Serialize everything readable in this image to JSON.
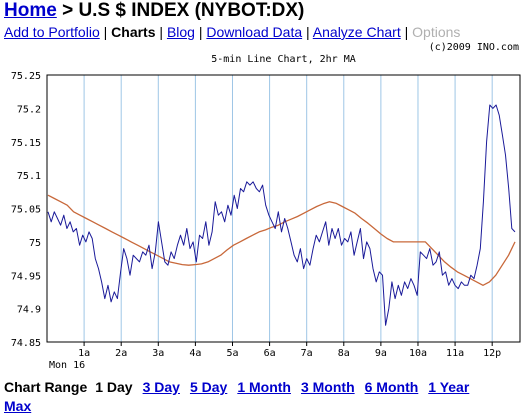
{
  "header": {
    "home": "Home",
    "separator": " > ",
    "title": "U.S $ INDEX (NYBOT:DX)"
  },
  "nav": {
    "add_to_portfolio": "Add to Portfolio",
    "charts": "Charts",
    "blog": "Blog",
    "download_data": "Download Data",
    "analyze_chart": "Analyze Chart",
    "options": "Options",
    "sep": " | "
  },
  "copyright": "(c)2009 INO.com",
  "chart_data": {
    "type": "line",
    "title": "5-min Line Chart, 2hr MA",
    "date_label": "Mon 16",
    "ylim": [
      74.85,
      75.25
    ],
    "y_ticks": [
      "75.25",
      "75.2",
      "75.15",
      "75.1",
      "75.05",
      "75",
      "74.95",
      "74.9",
      "74.85"
    ],
    "x_ticks": [
      "1a",
      "2a",
      "3a",
      "4a",
      "5a",
      "6a",
      "7a",
      "8a",
      "9a",
      "10a",
      "11a",
      "12p"
    ],
    "colors": {
      "price": "#1a1a99",
      "ma": "#c8683a",
      "grid": "#9ec6e6"
    },
    "series": [
      {
        "values": [
          75.045,
          75.03,
          75.045,
          75.035,
          75.025,
          75.04,
          75.02,
          75.03,
          75.015,
          75.02,
          74.995,
          75.01,
          75.0,
          75.015,
          75.005,
          74.975,
          74.96,
          74.94,
          74.915,
          74.935,
          74.91,
          74.925,
          74.915,
          74.955,
          74.99,
          74.975,
          74.95,
          74.98,
          74.975,
          74.97,
          74.985,
          74.98,
          74.995,
          74.96,
          74.985,
          75.03,
          75.0,
          74.97,
          74.965,
          74.985,
          74.975,
          74.995,
          75.01,
          74.995,
          75.02,
          74.99,
          75.0,
          74.97,
          75.01,
          75.005,
          75.03,
          74.995,
          75.015,
          75.06,
          75.04,
          75.045,
          75.03,
          75.055,
          75.04,
          75.07,
          75.05,
          75.08,
          75.075,
          75.09,
          75.085,
          75.09,
          75.08,
          75.075,
          75.085,
          75.055,
          75.04,
          75.03,
          75.02,
          75.045,
          75.015,
          75.035,
          75.02,
          75.0,
          74.98,
          74.97,
          74.99,
          74.96,
          74.975,
          74.965,
          74.99,
          75.01,
          75.0,
          75.015,
          75.03,
          74.995,
          75.02,
          75.005,
          75.02,
          74.995,
          75.005,
          75.0,
          75.015,
          74.98,
          75.0,
          75.02,
          74.975,
          75.0,
          74.99,
          74.96,
          74.94,
          74.955,
          74.95,
          74.875,
          74.9,
          74.94,
          74.915,
          74.935,
          74.92,
          74.94,
          74.93,
          74.945,
          74.935,
          74.92,
          74.985,
          74.98,
          74.975,
          74.99,
          74.965,
          74.97,
          74.985,
          74.95,
          74.955,
          74.935,
          74.945,
          74.935,
          74.93,
          74.94,
          74.935,
          74.935,
          74.95,
          74.945,
          74.965,
          74.99,
          75.06,
          75.15,
          75.205,
          75.2,
          75.205,
          75.19,
          75.16,
          75.13,
          75.08,
          75.02,
          75.015
        ]
      },
      {
        "values": [
          75.07,
          75.065,
          75.06,
          75.055,
          75.045,
          75.04,
          75.035,
          75.03,
          75.025,
          75.02,
          75.015,
          75.01,
          75.005,
          75.0,
          74.995,
          74.99,
          74.985,
          74.98,
          74.975,
          74.97,
          74.968,
          74.966,
          74.965,
          74.966,
          74.967,
          74.97,
          74.975,
          74.98,
          74.988,
          74.995,
          75.0,
          75.005,
          75.01,
          75.015,
          75.018,
          75.022,
          75.025,
          75.03,
          75.034,
          75.038,
          75.043,
          75.048,
          75.053,
          75.057,
          75.06,
          75.058,
          75.053,
          75.048,
          75.043,
          75.035,
          75.028,
          75.02,
          75.012,
          75.005,
          75.0,
          75.0,
          75.0,
          75.0,
          75.0,
          75.0,
          74.99,
          74.98,
          74.97,
          74.962,
          74.955,
          74.95,
          74.945,
          74.94,
          74.935,
          74.94,
          74.95,
          74.965,
          74.98,
          75.0
        ]
      }
    ]
  },
  "range": {
    "label": "Chart Range",
    "current": "1 Day",
    "options": [
      "3 Day",
      "5 Day",
      "1 Month",
      "3 Month",
      "6 Month",
      "1 Year"
    ],
    "max": "Max"
  }
}
